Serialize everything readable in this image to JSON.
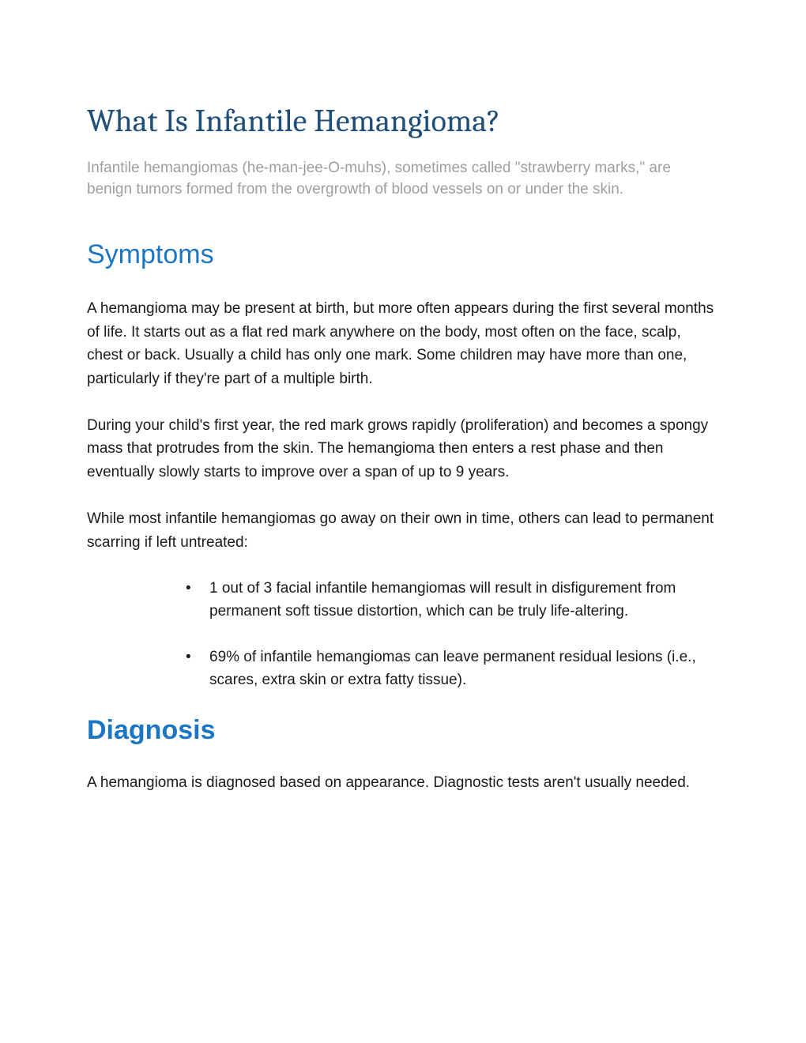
{
  "title": "What Is Infantile Hemangioma?",
  "intro": "Infantile hemangiomas (he-man-jee-O-muhs), sometimes called \"strawberry marks,\" are benign tumors formed from the overgrowth of blood vessels on or under the skin.",
  "symptoms": {
    "heading": "Symptoms",
    "para1": "A hemangioma may be present at birth, but more often appears during the first several months of life.  It starts out as a flat red mark anywhere on the body, most often on the face, scalp, chest or back. Usually a child has only one mark. Some children may have more than one, particularly if they're part of a multiple birth.",
    "para2": "During your child's first year, the red mark grows rapidly (proliferation) and becomes a spongy mass that protrudes from the skin. The hemangioma then enters a rest phase and then eventually slowly starts to improve over a span of up to 9 years.",
    "para3": "While most infantile hemangiomas go away on their own in time, others can lead to permanent scarring if left untreated:",
    "bullets": [
      "1 out of 3 facial infantile hemangiomas will result in disfigurement from permanent soft tissue distortion, which can be truly life-altering.",
      "69% of infantile hemangiomas can leave permanent residual lesions (i.e., scares, extra skin or extra fatty tissue)."
    ]
  },
  "diagnosis": {
    "heading": "Diagnosis",
    "para1": "A hemangioma is diagnosed based on appearance.  Diagnostic tests aren't usually needed."
  },
  "colors": {
    "title_color": "#1f4e79",
    "heading_color": "#1b76c4",
    "intro_color": "#9e9e9e",
    "body_color": "#1a1a1a",
    "background": "#ffffff"
  },
  "typography": {
    "title_fontsize": 40,
    "heading_fontsize": 34,
    "body_fontsize": 19,
    "title_font": "Cambria, Georgia, serif",
    "body_font": "Arial, Helvetica, sans-serif"
  }
}
